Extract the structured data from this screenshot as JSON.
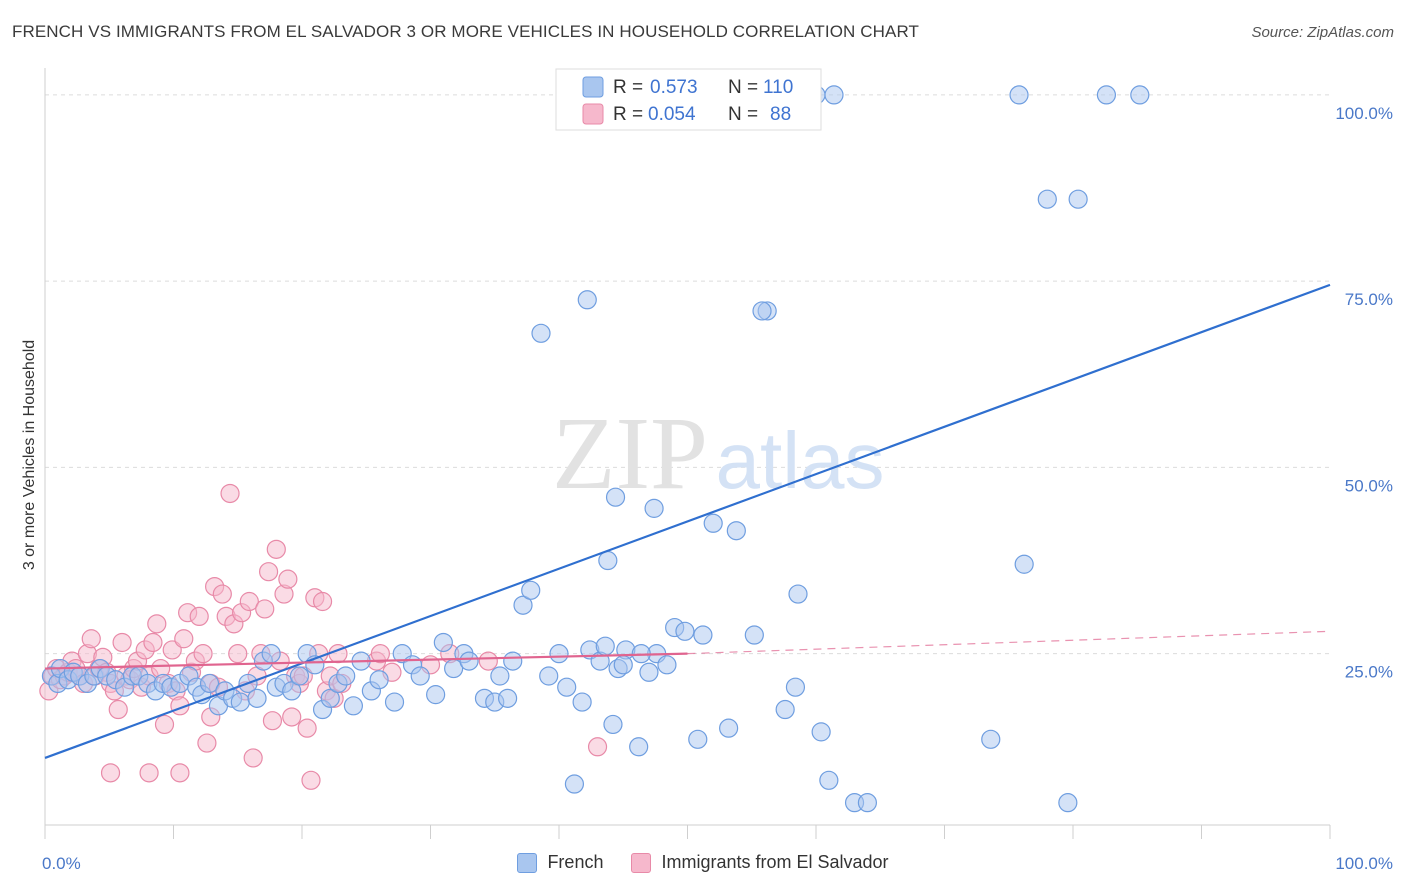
{
  "title": "FRENCH VS IMMIGRANTS FROM EL SALVADOR 3 OR MORE VEHICLES IN HOUSEHOLD CORRELATION CHART",
  "source": "Source: ZipAtlas.com",
  "watermark": {
    "zip": "ZIP",
    "atlas": "atlas"
  },
  "colors": {
    "blue_fill": "#a9c6ef",
    "blue_stroke": "#6f9ee0",
    "blue_line": "#2f6fcf",
    "pink_fill": "#f6b8cc",
    "pink_stroke": "#e88aa8",
    "pink_line": "#e0648f",
    "tick": "#4a78c8"
  },
  "chart_data": {
    "type": "scatter",
    "title": "FRENCH VS IMMIGRANTS FROM EL SALVADOR 3 OR MORE VEHICLES IN HOUSEHOLD CORRELATION CHART",
    "xlabel": "",
    "ylabel": "3 or more Vehicles in Household",
    "xlim": [
      0,
      100
    ],
    "ylim": [
      2,
      102
    ],
    "x_tick_labels": [
      {
        "value": 0,
        "label": "0.0%"
      },
      {
        "value": 100,
        "label": "100.0%"
      }
    ],
    "y_tick_labels": [
      {
        "value": 25,
        "label": "25.0%"
      },
      {
        "value": 50,
        "label": "50.0%"
      },
      {
        "value": 75,
        "label": "75.0%"
      },
      {
        "value": 100,
        "label": "100.0%"
      }
    ],
    "grid": "horizontal dashed",
    "legend": {
      "placement": "top-center",
      "entries": [
        {
          "r_label": "R =",
          "r_value": "0.573",
          "n_label": "N =",
          "n_value": "110"
        },
        {
          "r_label": "R =",
          "r_value": "0.054",
          "n_label": "N =",
          "n_value": "88"
        }
      ]
    },
    "series": [
      {
        "name": "French",
        "trend": {
          "x": [
            0,
            100
          ],
          "y": [
            11,
            74.5
          ],
          "style": "solid"
        },
        "points": [
          [
            0.5,
            22
          ],
          [
            1,
            21
          ],
          [
            1.2,
            23
          ],
          [
            1.8,
            21.5
          ],
          [
            2.2,
            22.5
          ],
          [
            2.7,
            22
          ],
          [
            3.3,
            21
          ],
          [
            3.8,
            22
          ],
          [
            4.3,
            23
          ],
          [
            4.8,
            22
          ],
          [
            5.5,
            21.5
          ],
          [
            6.2,
            20.5
          ],
          [
            6.8,
            22
          ],
          [
            7.3,
            22
          ],
          [
            8,
            21
          ],
          [
            8.6,
            20
          ],
          [
            9.2,
            21
          ],
          [
            9.8,
            20.5
          ],
          [
            10.5,
            21
          ],
          [
            11.2,
            22
          ],
          [
            11.8,
            20.5
          ],
          [
            12.2,
            19.5
          ],
          [
            12.8,
            21
          ],
          [
            13.5,
            18
          ],
          [
            14,
            20
          ],
          [
            14.6,
            19
          ],
          [
            15.2,
            18.5
          ],
          [
            15.8,
            21
          ],
          [
            16.5,
            19
          ],
          [
            17,
            24
          ],
          [
            17.6,
            25
          ],
          [
            18,
            20.5
          ],
          [
            18.6,
            21
          ],
          [
            19.2,
            20
          ],
          [
            19.8,
            22
          ],
          [
            20.4,
            25
          ],
          [
            21,
            23.5
          ],
          [
            21.6,
            17.5
          ],
          [
            22.2,
            19
          ],
          [
            22.8,
            21
          ],
          [
            23.4,
            22
          ],
          [
            24,
            18
          ],
          [
            24.6,
            24
          ],
          [
            25.4,
            20
          ],
          [
            26,
            21.5
          ],
          [
            27.2,
            18.5
          ],
          [
            27.8,
            25
          ],
          [
            28.6,
            23.5
          ],
          [
            29.2,
            22
          ],
          [
            30.4,
            19.5
          ],
          [
            31,
            26.5
          ],
          [
            31.8,
            23
          ],
          [
            32.6,
            25
          ],
          [
            33,
            24
          ],
          [
            34.2,
            19
          ],
          [
            35,
            18.5
          ],
          [
            35.4,
            22
          ],
          [
            36,
            19
          ],
          [
            36.4,
            24
          ],
          [
            37.2,
            31.5
          ],
          [
            37.8,
            33.5
          ],
          [
            39.2,
            22
          ],
          [
            40,
            25
          ],
          [
            40.6,
            20.5
          ],
          [
            41.2,
            7.5
          ],
          [
            41.8,
            18.5
          ],
          [
            42.4,
            25.5
          ],
          [
            43.2,
            24
          ],
          [
            44.2,
            15.5
          ],
          [
            44.6,
            23
          ],
          [
            45.2,
            25.5
          ],
          [
            46.2,
            12.5
          ],
          [
            47,
            22.5
          ],
          [
            47.6,
            25
          ],
          [
            38.6,
            68
          ],
          [
            42.2,
            72.5
          ],
          [
            43.6,
            26
          ],
          [
            43.8,
            37.5
          ],
          [
            44.4,
            46
          ],
          [
            45,
            23.5
          ],
          [
            46.4,
            25
          ],
          [
            47.4,
            44.5
          ],
          [
            48.4,
            23.5
          ],
          [
            49,
            28.5
          ],
          [
            49.8,
            28
          ],
          [
            50.8,
            13.5
          ],
          [
            51.2,
            27.5
          ],
          [
            52,
            42.5
          ],
          [
            53.2,
            15
          ],
          [
            53.8,
            41.5
          ],
          [
            55.2,
            27.5
          ],
          [
            56.2,
            71
          ],
          [
            57.6,
            17.5
          ],
          [
            58.4,
            20.5
          ],
          [
            58.6,
            33
          ],
          [
            60.4,
            14.5
          ],
          [
            61,
            8
          ],
          [
            63,
            5
          ],
          [
            64,
            5
          ],
          [
            55.8,
            71
          ],
          [
            60,
            100
          ],
          [
            61.4,
            100
          ],
          [
            78,
            86
          ],
          [
            80.4,
            86
          ],
          [
            73.6,
            13.5
          ],
          [
            75.8,
            100
          ],
          [
            82.6,
            100
          ],
          [
            85.2,
            100
          ],
          [
            76.2,
            37
          ],
          [
            79.6,
            5
          ]
        ]
      },
      {
        "name": "Immigrants from El Salvador",
        "trend": {
          "x": [
            0,
            50,
            100
          ],
          "y": [
            23,
            25,
            28
          ],
          "style": "solid to x=50, dashed after"
        },
        "points": [
          [
            0.3,
            20
          ],
          [
            0.6,
            22
          ],
          [
            0.9,
            23
          ],
          [
            1.2,
            21.5
          ],
          [
            1.5,
            22
          ],
          [
            1.8,
            22.5
          ],
          [
            2.1,
            24
          ],
          [
            2.4,
            23
          ],
          [
            2.7,
            22
          ],
          [
            3,
            21
          ],
          [
            3.3,
            25
          ],
          [
            3.6,
            27
          ],
          [
            3.9,
            22
          ],
          [
            4.2,
            23
          ],
          [
            4.5,
            24.5
          ],
          [
            4.8,
            22.5
          ],
          [
            5.1,
            21
          ],
          [
            5.4,
            20
          ],
          [
            5.7,
            17.5
          ],
          [
            6,
            26.5
          ],
          [
            6.3,
            22
          ],
          [
            6.6,
            21.5
          ],
          [
            6.9,
            23
          ],
          [
            7.2,
            24
          ],
          [
            7.5,
            20.5
          ],
          [
            7.8,
            25.5
          ],
          [
            8.1,
            22
          ],
          [
            8.4,
            26.5
          ],
          [
            8.7,
            29
          ],
          [
            9,
            23
          ],
          [
            9.3,
            15.5
          ],
          [
            9.6,
            21
          ],
          [
            9.9,
            25.5
          ],
          [
            10.2,
            20
          ],
          [
            10.5,
            18
          ],
          [
            10.8,
            27
          ],
          [
            11.1,
            30.5
          ],
          [
            11.4,
            22.5
          ],
          [
            11.7,
            24
          ],
          [
            12,
            30
          ],
          [
            12.3,
            25
          ],
          [
            12.6,
            13
          ],
          [
            12.9,
            21
          ],
          [
            13.2,
            34
          ],
          [
            13.5,
            20.5
          ],
          [
            13.8,
            33
          ],
          [
            14.1,
            30
          ],
          [
            14.4,
            46.5
          ],
          [
            14.7,
            29
          ],
          [
            15,
            25
          ],
          [
            15.3,
            30.5
          ],
          [
            15.6,
            20
          ],
          [
            15.9,
            32
          ],
          [
            16.2,
            11
          ],
          [
            16.5,
            22
          ],
          [
            16.8,
            25
          ],
          [
            17.1,
            31
          ],
          [
            17.4,
            36
          ],
          [
            17.7,
            16
          ],
          [
            18,
            39
          ],
          [
            18.3,
            24
          ],
          [
            18.6,
            33
          ],
          [
            18.9,
            35
          ],
          [
            19.2,
            16.5
          ],
          [
            19.5,
            22
          ],
          [
            19.8,
            21
          ],
          [
            20.1,
            22
          ],
          [
            20.4,
            15
          ],
          [
            20.7,
            8
          ],
          [
            21,
            32.5
          ],
          [
            21.3,
            25
          ],
          [
            21.6,
            32
          ],
          [
            21.9,
            20
          ],
          [
            22.2,
            22
          ],
          [
            22.5,
            19
          ],
          [
            22.8,
            25
          ],
          [
            23.1,
            21
          ],
          [
            25.8,
            24
          ],
          [
            26.1,
            25
          ],
          [
            27,
            22.5
          ],
          [
            30,
            23.5
          ],
          [
            31.5,
            25
          ],
          [
            34.5,
            24
          ],
          [
            5.1,
            9
          ],
          [
            8.1,
            9
          ],
          [
            10.5,
            9
          ],
          [
            12.9,
            16.5
          ],
          [
            43,
            12.5
          ]
        ]
      }
    ]
  }
}
